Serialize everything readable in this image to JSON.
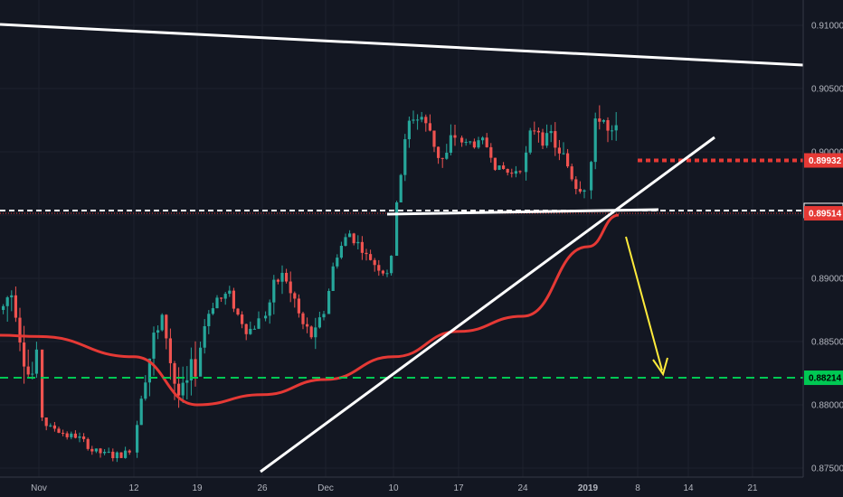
{
  "chart_data": {
    "type": "candlestick",
    "title": "",
    "xlabel": "",
    "ylabel": "",
    "ylim": [
      0.8745,
      0.912
    ],
    "x_tick_labels": [
      "Nov",
      "12",
      "19",
      "26",
      "Dec",
      "10",
      "17",
      "24",
      "2019",
      "8",
      "14",
      "21"
    ],
    "y_tick_labels": [
      "0.91000",
      "0.90500",
      "0.90000",
      "0.89500",
      "0.89000",
      "0.88500",
      "0.88000",
      "0.87500"
    ],
    "y_tick_values": [
      0.91,
      0.905,
      0.9,
      0.895,
      0.89,
      0.885,
      0.88,
      0.875
    ],
    "price_badges": [
      {
        "label": "0.89932",
        "value": 0.89932,
        "color": "#e53935"
      },
      {
        "label": "0.89536",
        "value": 0.89536,
        "color": "#ffffff"
      },
      {
        "label": "0.89514",
        "value": 0.89514,
        "color": "#e53935"
      },
      {
        "label": "0.88214",
        "value": 0.88214,
        "color": "#00c853"
      }
    ],
    "moving_average": {
      "color": "#e53935",
      "points": [
        [
          "Nov-A",
          0.8855
        ],
        [
          "Nov",
          0.8854
        ],
        [
          "12",
          0.8838
        ],
        [
          "19",
          0.88
        ],
        [
          "26",
          0.8808
        ],
        [
          "Dec",
          0.882
        ],
        [
          "10",
          0.8838
        ],
        [
          "17",
          0.8858
        ],
        [
          "24",
          0.887
        ],
        [
          "2019",
          0.8925
        ],
        [
          "2019+",
          0.895
        ]
      ]
    },
    "candles_summary": {
      "up_color": "#26a69a",
      "down_color": "#ef5350",
      "segments": [
        {
          "from": "Nov-A",
          "to": "Nov",
          "high": 0.8945,
          "low": 0.877
        },
        {
          "from": "Nov",
          "to": "12",
          "high": 0.879,
          "low": 0.8745
        },
        {
          "from": "12",
          "to": "19",
          "high": 0.8925,
          "low": 0.8745
        },
        {
          "from": "19",
          "to": "26",
          "high": 0.892,
          "low": 0.884
        },
        {
          "from": "26",
          "to": "Dec",
          "high": 0.8935,
          "low": 0.881
        },
        {
          "from": "Dec",
          "to": "10",
          "high": 0.896,
          "low": 0.889
        },
        {
          "from": "10",
          "to": "17",
          "high": 0.9075,
          "low": 0.896
        },
        {
          "from": "17",
          "to": "24",
          "high": 0.902,
          "low": 0.8965
        },
        {
          "from": "24",
          "to": "2019",
          "high": 0.9055,
          "low": 0.8945
        },
        {
          "from": "2019",
          "to": "2019+",
          "high": 0.9093,
          "low": 0.895
        }
      ]
    },
    "drawings": [
      {
        "name": "descending-resistance-line",
        "color": "#ffffff",
        "style": "solid"
      },
      {
        "name": "ascending-trendline",
        "color": "#ffffff",
        "style": "solid"
      },
      {
        "name": "neckline",
        "color": "#ffffff",
        "style": "solid"
      },
      {
        "name": "horizontal-white-dashed",
        "color": "#ffffff",
        "style": "dashed",
        "value": 0.89536
      },
      {
        "name": "horizontal-red-dotted",
        "color": "#e53935",
        "style": "dotted",
        "value": 0.89932
      },
      {
        "name": "horizontal-green-dashed",
        "color": "#00c853",
        "style": "dashed",
        "value": 0.88214
      },
      {
        "name": "projection-arrow",
        "color": "#ffeb3b",
        "style": "solid"
      }
    ],
    "grid": true,
    "legend": "none"
  }
}
